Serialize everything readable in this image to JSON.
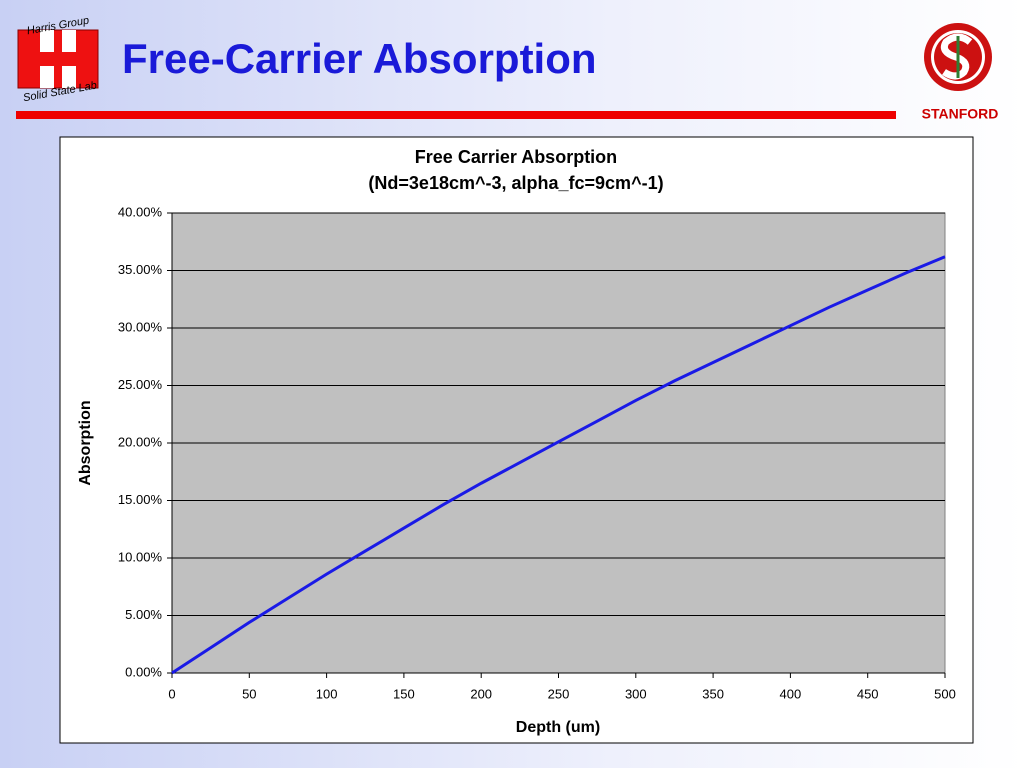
{
  "header": {
    "title": "Free-Carrier Absorption",
    "logo_top": "Harris Group",
    "logo_bottom": "Solid State Lab",
    "institution": "STANFORD"
  },
  "chart_data": {
    "type": "line",
    "title": "Free Carrier Absorption",
    "subtitle": "(Nd=3e18cm^-3, alpha_fc=9cm^-1)",
    "x_label": "Depth (um)",
    "y_label": "Absorption",
    "x": [
      0,
      25,
      50,
      75,
      100,
      125,
      150,
      175,
      200,
      225,
      250,
      275,
      300,
      325,
      350,
      375,
      400,
      425,
      450,
      475,
      500
    ],
    "series": [
      {
        "name": "Absorption",
        "color": "#1a1ae6",
        "values": [
          0,
          0.022,
          0.044,
          0.065,
          0.086,
          0.106,
          0.126,
          0.146,
          0.165,
          0.183,
          0.201,
          0.219,
          0.237,
          0.254,
          0.27,
          0.286,
          0.302,
          0.318,
          0.333,
          0.348,
          0.362
        ]
      }
    ],
    "xlim": [
      0,
      500
    ],
    "xticks": [
      0,
      50,
      100,
      150,
      200,
      250,
      300,
      350,
      400,
      450,
      500
    ],
    "ylim": [
      0,
      0.4
    ],
    "yticks": [
      {
        "value": 0,
        "label": "0.00%"
      },
      {
        "value": 0.05,
        "label": "5.00%"
      },
      {
        "value": 0.1,
        "label": "10.00%"
      },
      {
        "value": 0.15,
        "label": "15.00%"
      },
      {
        "value": 0.2,
        "label": "20.00%"
      },
      {
        "value": 0.25,
        "label": "25.00%"
      },
      {
        "value": 0.3,
        "label": "30.00%"
      },
      {
        "value": 0.35,
        "label": "35.00%"
      },
      {
        "value": 0.4,
        "label": "40.00%"
      }
    ],
    "grid": true
  }
}
